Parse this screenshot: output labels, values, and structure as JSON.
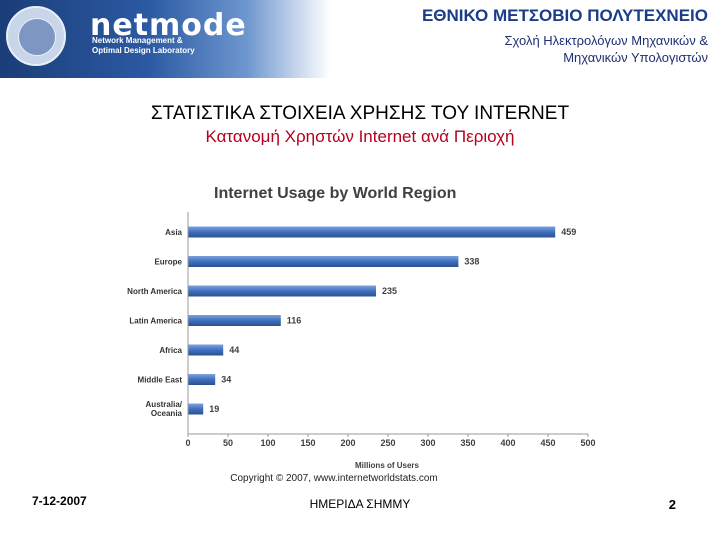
{
  "header": {
    "logo_word": "netmode",
    "logo_sub_line1": "Network Management &",
    "logo_sub_line2": "Optimal Design Laboratory",
    "institution": "ΕΘΝΙΚΟ ΜΕΤΣΟΒΙΟ ΠΟΛΥΤΕΧΝΕΙΟ",
    "department_line1": "Σχολή Ηλεκτρολόγων Μηχανικών &",
    "department_line2": "Μηχανικών Υπολογιστών"
  },
  "slide": {
    "title": "ΣΤΑΤΙΣΤΙΚΑ ΣΤΟΙΧΕΙΑ ΧΡΗΣΗΣ ΤΟΥ INTERNET",
    "subtitle": "Κατανομή Χρηστών Internet ανά Περιοχή"
  },
  "chart_data": {
    "type": "bar",
    "orientation": "horizontal",
    "title": "Internet Usage by World Region",
    "xlabel": "Millions of Users",
    "ylabel": "",
    "categories": [
      "Asia",
      "Europe",
      "North America",
      "Latin America",
      "Africa",
      "Middle East",
      "Australia/ Oceania"
    ],
    "values": [
      459,
      338,
      235,
      116,
      44,
      34,
      19
    ],
    "xlim": [
      0,
      500
    ],
    "xticks": [
      0,
      50,
      100,
      150,
      200,
      250,
      300,
      350,
      400,
      450,
      500
    ],
    "grid": false,
    "bar_color": "#3f6fbf",
    "source": "Copyright © 2007, www.internetworldstats.com"
  },
  "footer": {
    "date": "7-12-2007",
    "event": "ΗΜΕΡΙΔΑ ΣΗΜΜΥ",
    "page": "2"
  }
}
